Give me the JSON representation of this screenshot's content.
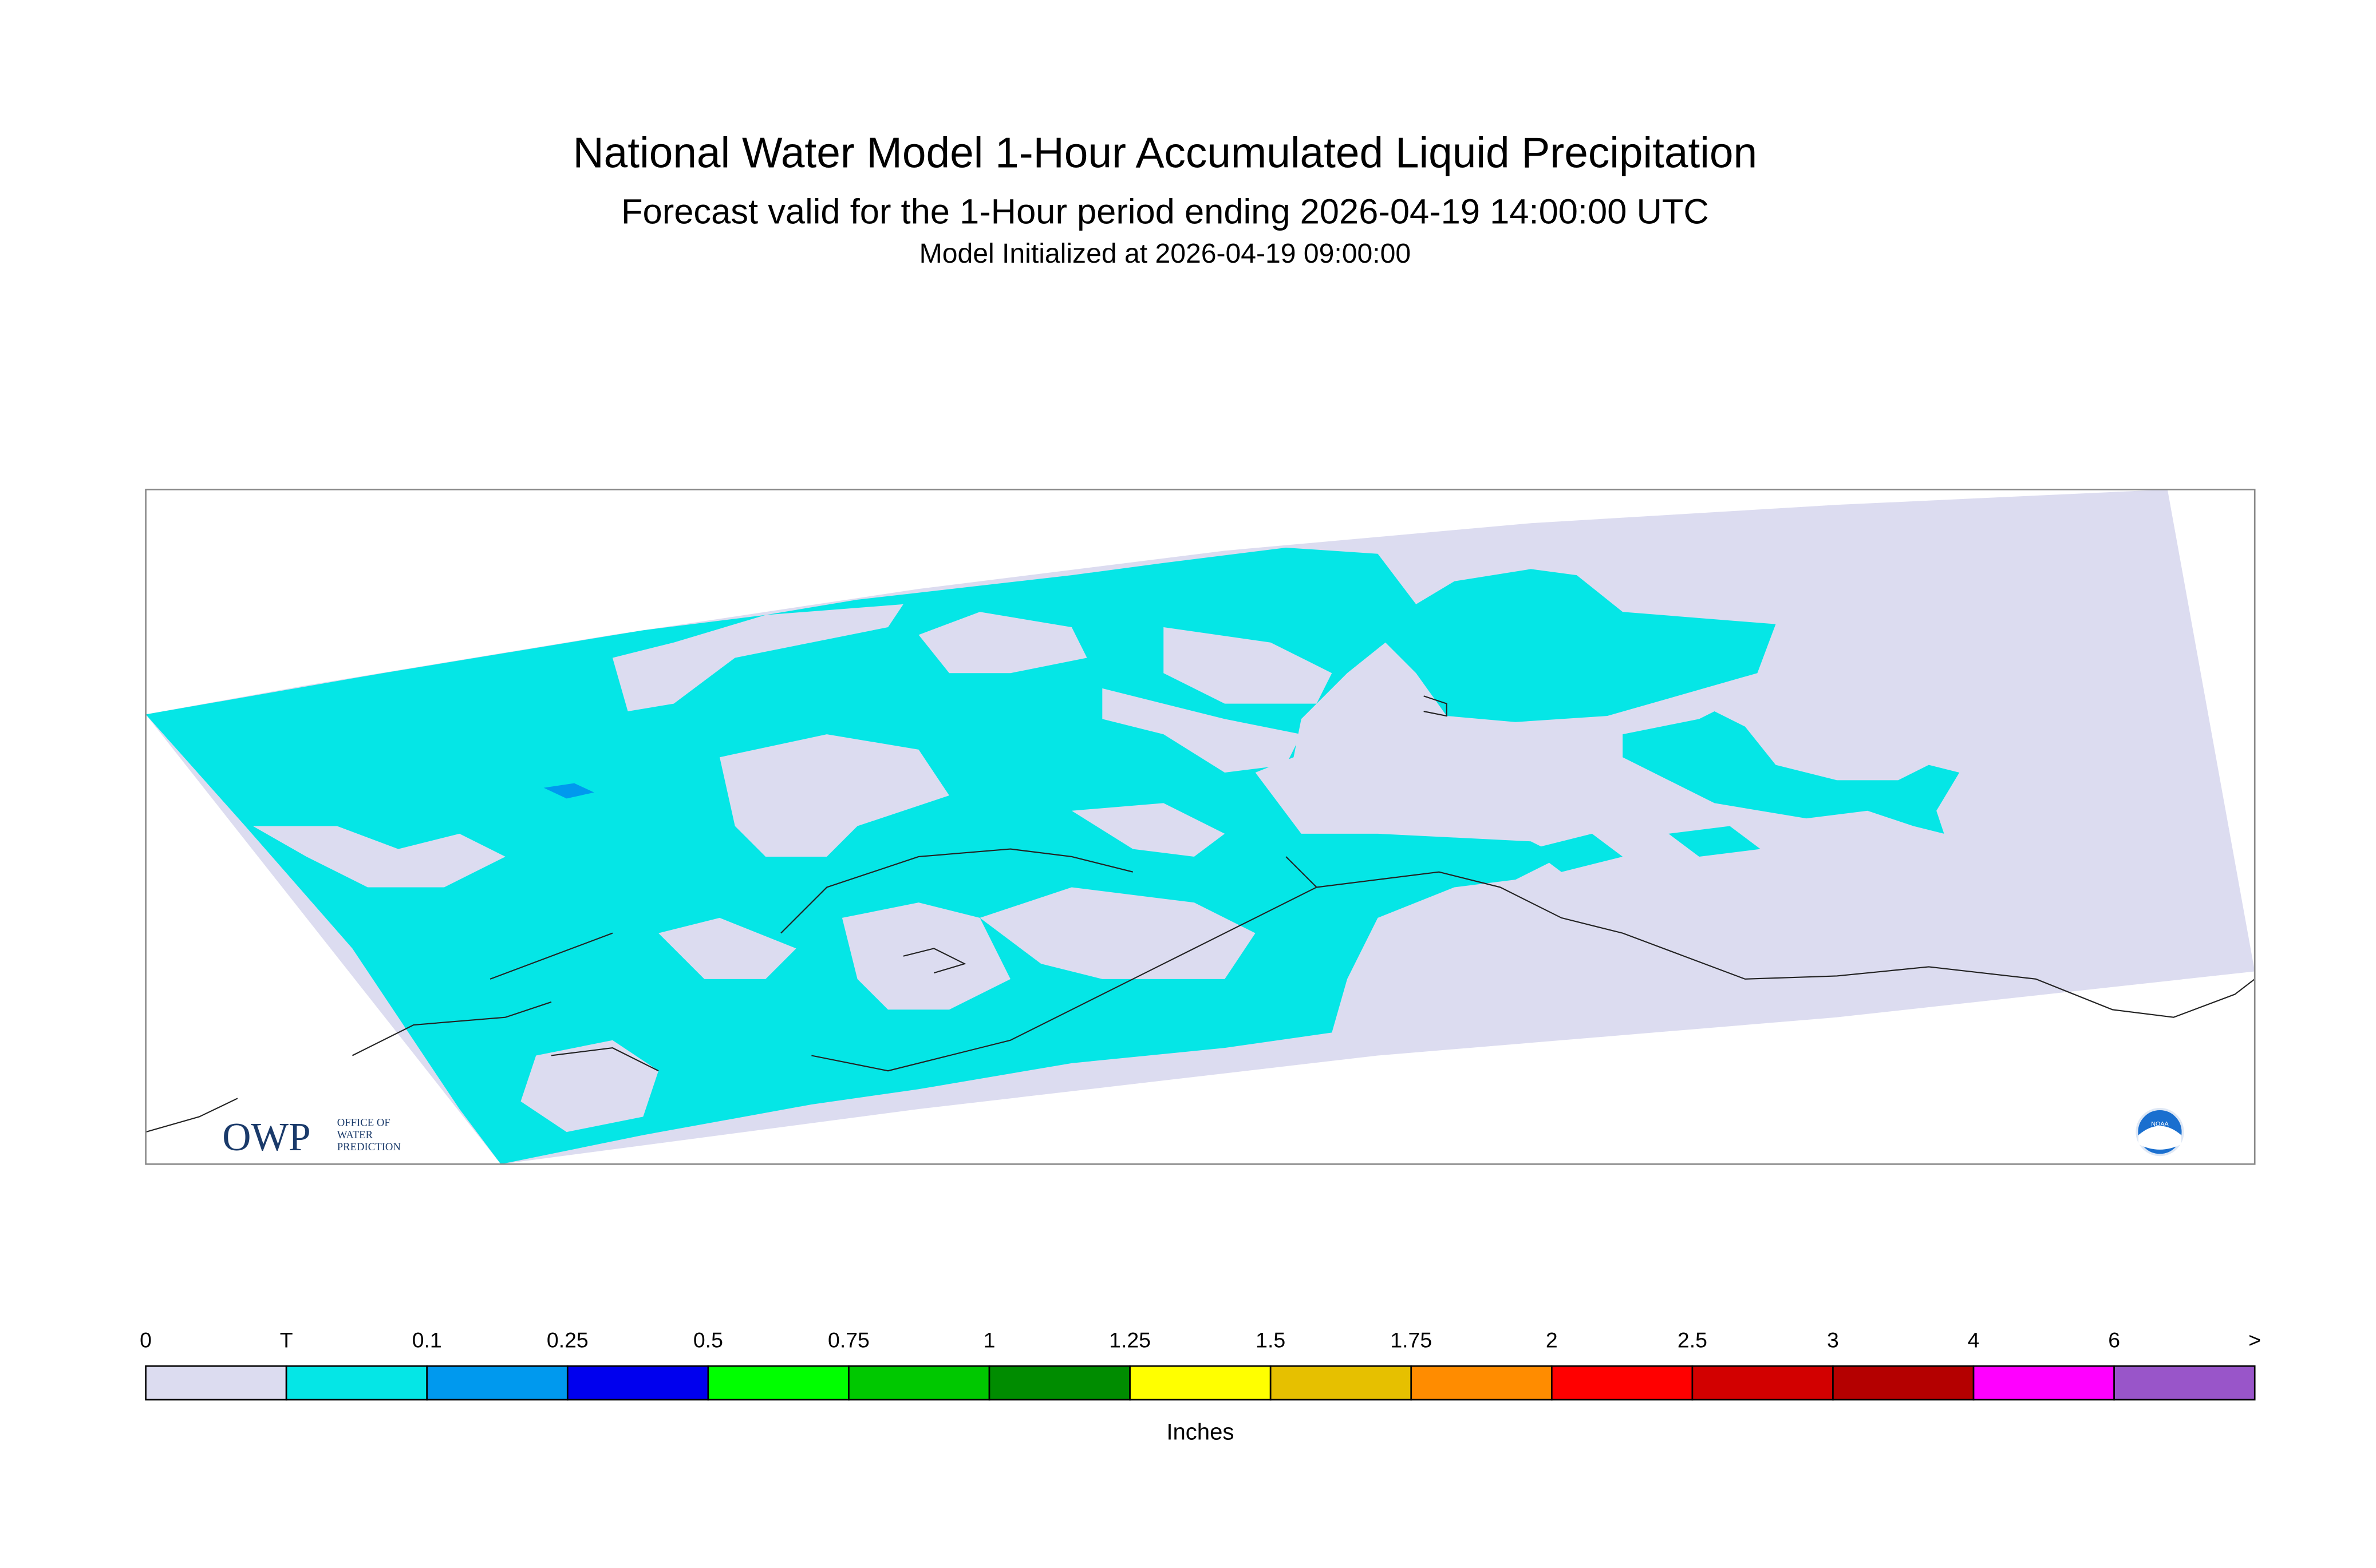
{
  "header": {
    "title": "National Water Model 1-Hour Accumulated Liquid Precipitation",
    "subtitle": "Forecast valid for the 1-Hour period ending 2026-04-19 14:00:00 UTC",
    "init": "Model Initialized at 2026-04-19 09:00:00"
  },
  "legend": {
    "labels": [
      "0",
      "T",
      "0.1",
      "0.25",
      "0.5",
      "0.75",
      "1",
      "1.25",
      "1.5",
      "1.75",
      "2",
      "2.5",
      "3",
      "4",
      "6",
      ">"
    ],
    "colors": [
      "#dcdcf0",
      "#05e6e6",
      "#0099ee",
      "#0000ee",
      "#00ff00",
      "#00c800",
      "#008c00",
      "#ffff00",
      "#e6c000",
      "#ff8c00",
      "#ff0000",
      "#d20000",
      "#b40000",
      "#ff00ff",
      "#9955c9"
    ],
    "unit": "Inches"
  },
  "logos": {
    "owp": "OWP",
    "owp_lines": [
      "OFFICE OF",
      "WATER",
      "PREDICTION"
    ],
    "noaa": "NOAA"
  }
}
